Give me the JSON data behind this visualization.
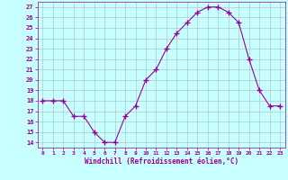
{
  "x": [
    0,
    1,
    2,
    3,
    4,
    5,
    6,
    7,
    8,
    9,
    10,
    11,
    12,
    13,
    14,
    15,
    16,
    17,
    18,
    19,
    20,
    21,
    22,
    23
  ],
  "y": [
    18,
    18,
    18,
    16.5,
    16.5,
    15,
    14,
    14,
    16.5,
    17.5,
    20,
    21,
    23,
    24.5,
    25.5,
    26.5,
    27,
    27,
    26.5,
    25.5,
    22,
    19,
    17.5,
    17.5
  ],
  "line_color": "#990099",
  "marker": "+",
  "marker_size": 4,
  "bg_color": "#c8ffff",
  "grid_color": "#aacccc",
  "xlabel": "Windchill (Refroidissement éolien,°C)",
  "xlabel_color": "#990099",
  "ylabel_ticks": [
    14,
    15,
    16,
    17,
    18,
    19,
    20,
    21,
    22,
    23,
    24,
    25,
    26,
    27
  ],
  "ylim": [
    13.5,
    27.5
  ],
  "xlim": [
    -0.5,
    23.5
  ],
  "tick_color": "#990099",
  "tick_label_color": "#990099"
}
